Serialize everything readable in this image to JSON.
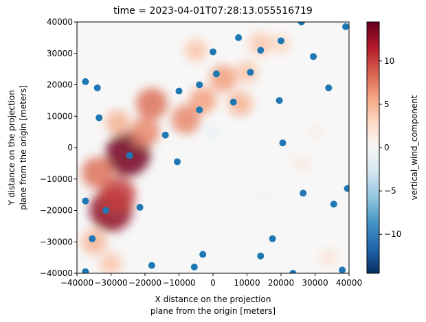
{
  "chart_data": {
    "type": "heatmap",
    "title": "time = 2023-04-01T07:28:13.055516719",
    "xlabel_lines": [
      "X distance on the projection",
      "plane from the origin [meters]"
    ],
    "ylabel_lines": [
      "Y distance on the projection",
      "plane from the origin [meters]"
    ],
    "xlim": [
      -40000,
      40000
    ],
    "ylim": [
      -40000,
      40000
    ],
    "xticks": [
      -40000,
      -30000,
      -20000,
      -10000,
      0,
      10000,
      20000,
      30000,
      40000
    ],
    "xtick_labels": [
      "−40000",
      "−30000",
      "−20000",
      "−10000",
      "0",
      "10000",
      "20000",
      "30000",
      "40000"
    ],
    "yticks": [
      40000,
      30000,
      20000,
      10000,
      0,
      -10000,
      -20000,
      -30000,
      -40000
    ],
    "ytick_labels": [
      "40000",
      "30000",
      "20000",
      "10000",
      "0",
      "−10000",
      "−20000",
      "−30000",
      "−40000"
    ],
    "colorbar": {
      "label": "vertical_wind_component",
      "vmin": -14.5,
      "vmax": 14.5,
      "ticks": [
        10,
        5,
        0,
        -5,
        -10
      ],
      "tick_labels": [
        "10",
        "5",
        "0",
        "−5",
        "−10"
      ],
      "colormap": "RdBu_r"
    },
    "field_features": [
      {
        "x": -25000,
        "y": -2000,
        "value": 14
      },
      {
        "x": -30000,
        "y": -20000,
        "value": 13
      },
      {
        "x": -28000,
        "y": -15000,
        "value": 10
      },
      {
        "x": -34000,
        "y": -8000,
        "value": 8
      },
      {
        "x": -20000,
        "y": 5000,
        "value": 7
      },
      {
        "x": -18000,
        "y": 14000,
        "value": 8
      },
      {
        "x": -8000,
        "y": 9000,
        "value": 7
      },
      {
        "x": -3000,
        "y": 15000,
        "value": 6
      },
      {
        "x": 3000,
        "y": 22000,
        "value": 6
      },
      {
        "x": 8000,
        "y": 14000,
        "value": 5
      },
      {
        "x": 10000,
        "y": 24000,
        "value": 4
      },
      {
        "x": 14000,
        "y": 33000,
        "value": 4
      },
      {
        "x": -5000,
        "y": 31000,
        "value": 4
      },
      {
        "x": -28000,
        "y": 8000,
        "value": 5
      },
      {
        "x": -35000,
        "y": -30000,
        "value": 5
      },
      {
        "x": -30000,
        "y": -37000,
        "value": 4
      },
      {
        "x": 20000,
        "y": 33000,
        "value": 3
      },
      {
        "x": 34000,
        "y": -35000,
        "value": 2
      },
      {
        "x": 26000,
        "y": -5000,
        "value": 1.5
      },
      {
        "x": 30000,
        "y": 5000,
        "value": 1
      },
      {
        "x": 0,
        "y": 5000,
        "value": -1
      },
      {
        "x": 15000,
        "y": -15000,
        "value": -0.5
      }
    ],
    "scatter_points": [
      {
        "x": 26000,
        "y": 40000
      },
      {
        "x": 39000,
        "y": 38500
      },
      {
        "x": 7500,
        "y": 35000
      },
      {
        "x": 20000,
        "y": 34000
      },
      {
        "x": 14000,
        "y": 31000
      },
      {
        "x": 0,
        "y": 30500
      },
      {
        "x": 29500,
        "y": 29000
      },
      {
        "x": 1000,
        "y": 23500
      },
      {
        "x": 11000,
        "y": 24000
      },
      {
        "x": -37500,
        "y": 21000
      },
      {
        "x": -34000,
        "y": 19000
      },
      {
        "x": -4000,
        "y": 20000
      },
      {
        "x": -10000,
        "y": 18000
      },
      {
        "x": 34000,
        "y": 19000
      },
      {
        "x": 6000,
        "y": 14500
      },
      {
        "x": 19500,
        "y": 15000
      },
      {
        "x": -4000,
        "y": 12000
      },
      {
        "x": -33500,
        "y": 9500
      },
      {
        "x": -14000,
        "y": 4000
      },
      {
        "x": 20500,
        "y": 1500
      },
      {
        "x": -24500,
        "y": -2500
      },
      {
        "x": -10500,
        "y": -4500
      },
      {
        "x": 26500,
        "y": -14500
      },
      {
        "x": 39500,
        "y": -13000
      },
      {
        "x": -37500,
        "y": -17000
      },
      {
        "x": -31500,
        "y": -20000
      },
      {
        "x": -21500,
        "y": -19000
      },
      {
        "x": 35500,
        "y": -18000
      },
      {
        "x": -35500,
        "y": -29000
      },
      {
        "x": 17500,
        "y": -29000
      },
      {
        "x": -18000,
        "y": -37500
      },
      {
        "x": -5500,
        "y": -38000
      },
      {
        "x": -3000,
        "y": -34000
      },
      {
        "x": 14000,
        "y": -34500
      },
      {
        "x": -37500,
        "y": -39500
      },
      {
        "x": 23500,
        "y": -40000
      },
      {
        "x": 38000,
        "y": -39000
      }
    ],
    "marker_color": "#1f77b4"
  }
}
